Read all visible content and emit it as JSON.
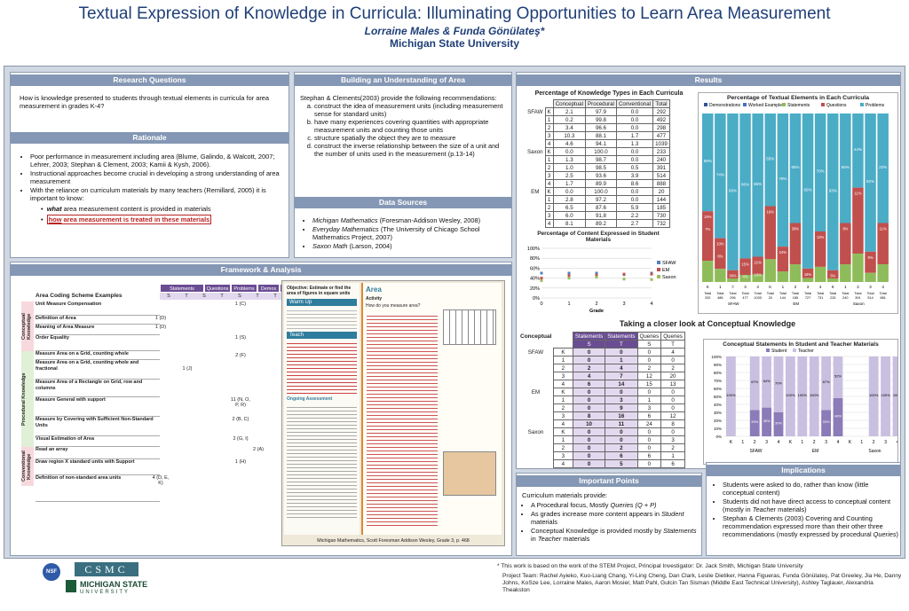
{
  "header": {
    "title": "Textual Expression of Knowledge in Curricula: Illuminating Opportunities to Learn Area Measurement",
    "authors": "Lorraine Males & Funda Gönülateş*",
    "affiliation": "Michigan State University"
  },
  "research": {
    "title": "Research Questions",
    "text": "How is knowledge presented to students through textual elements in curricula for area measurement in grades K-4?"
  },
  "rationale": {
    "title": "Rationale",
    "items": [
      "Poor performance in measurement including area (Blume, Galindo, & Walcott, 2007; Lehrer, 2003; Stephan & Clement, 2003; Kamii & Kysh, 2006).",
      "Instructional approaches become crucial in developing a strong understanding of area measurement",
      "With the reliance on curriculum materials by many teachers (Remillard, 2005) it is important to  know:"
    ],
    "sub1_a": "what",
    "sub1_b": " area measurement content is provided in materials",
    "sub2_a": "how",
    "sub2_b": " area measurement is treated in these materials"
  },
  "building": {
    "title": "Building an Understanding of Area",
    "intro": "Stephan & Clements(2003) provide the following recommendations:",
    "items": [
      "construct the idea of measurement units (including measurement sense for standard units)",
      "have many experiences covering quantities with appropriate measurement units and counting those units",
      "structure spatially the object they are to measure",
      "construct the inverse relationship between the size of a unit and the number of units used in the measurement (p.13-14)"
    ]
  },
  "sources": {
    "title": "Data Sources",
    "items": [
      {
        "name": "Michigan Mathematics",
        "rest": " (Foresman-Addison Wesley, 2008)"
      },
      {
        "name": "Everyday Mathematics",
        "rest": " (The University of Chicago School Mathematics Project, 2007)"
      },
      {
        "name": "Saxon Math",
        "rest": " (Larson, 2004)"
      }
    ]
  },
  "framework": {
    "title": "Framework & Analysis",
    "table_title": "Area Coding Scheme Examples",
    "cols": [
      "Statements",
      "Questions",
      "Problems",
      "Demos",
      "WEs"
    ],
    "sub": [
      "S",
      "T",
      "S",
      "T",
      "S",
      "T",
      "T",
      "S"
    ],
    "groups": [
      "Conceptual Knowledge",
      "Procedural Knowledge",
      "Conventional Knowledge"
    ],
    "rows": [
      "Unit Measure Compensation",
      "Definition of Area",
      "Meaning of Area Measure",
      "Order Equality",
      "Measure Area on a Grid, counting whole",
      "Measure Area on a Grid, counting whole and fractional",
      "Measure Area of a Rectangle on Grid, row and columns",
      "Measure General with support",
      "Measure by Covering with Sufficient Non-Standard Units",
      "Visual Estimation of Area",
      "Read an array",
      "Draw region X standard units with Support",
      "Definition of non-standard area units"
    ],
    "codes": [
      "1 (C)",
      "1 (D)",
      "1 (D)",
      "1 (S)",
      "2 (F)",
      "1 (L)",
      "1 (J)",
      "1 (M)",
      "11 (N, O, P, R)",
      "2 (B, C)",
      "2 (G, I)",
      "2 (A)",
      "1 (H)",
      "4 (D, E, K)"
    ],
    "caption": "Michigan Mathematics, Scott Foresman Addison Wesley, Grade 3, p. 468",
    "book1": "Objective: Estimate or find the area of figures in square units",
    "book2": "Warm Up",
    "book3": "Teach",
    "book4": "Ongoing Assessment",
    "book5": "Area",
    "book6": "Activity",
    "book7": "How do you measure area?"
  },
  "results": {
    "title": "Results",
    "t1_title": "Percentage of Knowledge Types in Each Curricula",
    "t1_head": [
      "Conceptual",
      "Procedural",
      "Conventional",
      "Total"
    ],
    "t1_rows": [
      [
        "SFAW",
        "K",
        "2.1",
        "97.9",
        "0.0",
        "292"
      ],
      [
        "",
        "1",
        "0.2",
        "99.8",
        "0.0",
        "492"
      ],
      [
        "",
        "2",
        "3.4",
        "96.6",
        "0.0",
        "298"
      ],
      [
        "",
        "3",
        "10.3",
        "88.1",
        "1.7",
        "477"
      ],
      [
        "",
        "4",
        "4.6",
        "94.1",
        "1.3",
        "1039"
      ],
      [
        "Saxon",
        "K",
        "0.0",
        "100.0",
        "0.0",
        "233"
      ],
      [
        "",
        "1",
        "1.3",
        "98.7",
        "0.0",
        "240"
      ],
      [
        "",
        "2",
        "1.0",
        "98.5",
        "0.5",
        "391"
      ],
      [
        "",
        "3",
        "2.5",
        "93.6",
        "3.9",
        "514"
      ],
      [
        "",
        "4",
        "1.7",
        "89.9",
        "8.6",
        "888"
      ],
      [
        "EM",
        "K",
        "0.0",
        "100.0",
        "0.0",
        "20"
      ],
      [
        "",
        "1",
        "2.8",
        "97.2",
        "0.0",
        "144"
      ],
      [
        "",
        "2",
        "6.5",
        "87.6",
        "5.9",
        "185"
      ],
      [
        "",
        "3",
        "6.0",
        "91.8",
        "2.2",
        "730"
      ],
      [
        "",
        "4",
        "8.1",
        "89.2",
        "2.7",
        "732"
      ]
    ],
    "sc_title": "Percentage of Content Expressed in Student Materials",
    "sc_legend": [
      "SFAW",
      "EM",
      "Saxon"
    ],
    "sc_y": [
      "100%",
      "80%",
      "60%",
      "40%",
      "20%",
      "0%"
    ],
    "sc_x": [
      "0",
      "1",
      "2",
      "3",
      "4"
    ],
    "sc_xlabel": "Grade",
    "st_title": "Percentage of Textual Elements in Each Curricula",
    "st_legend": [
      "Demonstrations",
      "Worked Examples",
      "Statements",
      "Questions",
      "Problems"
    ],
    "st_totals": [
      "Total 202",
      "Total 486",
      "Total 296",
      "Total 477",
      "Total 1033",
      "Total 20",
      "Total 144",
      "Total 185",
      "Total 727",
      "Total 731",
      "Total 233",
      "Total 240",
      "Total 391",
      "Total 514",
      "Total 881"
    ],
    "st_grades": [
      "K",
      "1",
      "2",
      "3",
      "4",
      "K",
      "1",
      "2",
      "3",
      "4",
      "K",
      "1",
      "2",
      "3",
      "4"
    ],
    "st_groups": [
      "SFAW",
      "EM",
      "Saxon"
    ],
    "st_labels": [
      "58%",
      "74%",
      "93%",
      "86%",
      "85%",
      "55%",
      "79%",
      "65%",
      "92%",
      "70%",
      "93%",
      "65%",
      "44%",
      "82%",
      "22%",
      "19%",
      "10%",
      "36%",
      "15%",
      "21%",
      "16%",
      "24%",
      "39%",
      "16%",
      "13%",
      "5%",
      "8%",
      "11%",
      "9%",
      "11%",
      "7%",
      "6%",
      "7%",
      "4%",
      "16%"
    ],
    "closer": "Taking a closer look at Conceptual Knowledge",
    "ck_head": [
      "Conceptual",
      "Statements",
      "Statements",
      "Queries",
      "Queries"
    ],
    "ck_sub": [
      "S",
      "T",
      "S",
      "T"
    ],
    "ck_rows": [
      [
        "SFAW",
        "K",
        "0",
        "0",
        "0",
        "4"
      ],
      [
        "",
        "1",
        "0",
        "1",
        "0",
        "0"
      ],
      [
        "",
        "2",
        "2",
        "4",
        "2",
        "2"
      ],
      [
        "",
        "3",
        "4",
        "7",
        "12",
        "20"
      ],
      [
        "",
        "4",
        "6",
        "14",
        "15",
        "13"
      ],
      [
        "EM",
        "K",
        "0",
        "0",
        "0",
        "0"
      ],
      [
        "",
        "1",
        "0",
        "3",
        "1",
        "0"
      ],
      [
        "",
        "2",
        "0",
        "9",
        "3",
        "0"
      ],
      [
        "",
        "3",
        "8",
        "16",
        "6",
        "12"
      ],
      [
        "",
        "4",
        "10",
        "11",
        "24",
        "8"
      ],
      [
        "Saxon",
        "K",
        "0",
        "0",
        "0",
        "0"
      ],
      [
        "",
        "1",
        "0",
        "0",
        "0",
        "3"
      ],
      [
        "",
        "2",
        "0",
        "2",
        "0",
        "2"
      ],
      [
        "",
        "3",
        "0",
        "6",
        "6",
        "1"
      ],
      [
        "",
        "4",
        "0",
        "5",
        "0",
        "6"
      ]
    ],
    "bc_title": "Conceptual Statements In Student and Teacher Materials",
    "bc_legend": [
      "Student",
      "Teacher"
    ],
    "bc_y": [
      "100%",
      "90%",
      "80%",
      "70%",
      "60%",
      "50%",
      "40%",
      "30%",
      "20%",
      "10%",
      "0%"
    ],
    "bc_x": [
      "K",
      "1",
      "2",
      "3",
      "4",
      "K",
      "1",
      "2",
      "3",
      "4",
      "K",
      "1",
      "2",
      "3",
      "4"
    ],
    "bc_groups": [
      "SFAW",
      "EM",
      "Saxon"
    ]
  },
  "chart_data": [
    {
      "type": "scatter",
      "title": "Percentage of Content Expressed in Student Materials",
      "xlabel": "Grade",
      "ylim": [
        0,
        100
      ],
      "x": [
        0,
        1,
        2,
        3,
        4
      ],
      "series": [
        {
          "name": "SFAW",
          "values": [
            50,
            50,
            50,
            47,
            50
          ]
        },
        {
          "name": "EM",
          "values": [
            40,
            45,
            46,
            48,
            48
          ]
        },
        {
          "name": "Saxon",
          "values": [
            35,
            40,
            42,
            38,
            37
          ]
        }
      ]
    },
    {
      "type": "bar",
      "title": "Conceptual Statements In Student and Teacher Materials",
      "categories": [
        "K",
        "1",
        "2",
        "3",
        "4",
        "K",
        "1",
        "2",
        "3",
        "4",
        "K",
        "1",
        "2",
        "3",
        "4"
      ],
      "series": [
        {
          "name": "Student",
          "values": [
            0,
            0,
            33,
            36,
            30,
            0,
            0,
            0,
            33,
            48,
            0,
            0,
            0,
            0,
            0
          ]
        },
        {
          "name": "Teacher",
          "values": [
            100,
            0,
            67,
            64,
            70,
            100,
            100,
            100,
            67,
            52,
            0,
            0,
            100,
            100,
            100
          ]
        }
      ],
      "ylim": [
        0,
        100
      ]
    }
  ],
  "points": {
    "title": "Important Points",
    "intro": "Curriculum materials provide:",
    "items": [
      {
        "a": "A Procedural focus, Mostly ",
        "i": "Queries (Q + P)",
        "b": ""
      },
      {
        "a": "As grades increase more content appears in ",
        "i": "Student",
        "b": " materials"
      },
      {
        "a": "Conceptual Knowledge is provided mostly by ",
        "i": "Statements",
        "b": " in ",
        "i2": "Teacher",
        "c": " materials"
      }
    ]
  },
  "implications": {
    "title": "Implications",
    "items": [
      {
        "a": "Students were asked to do, rather than know (little conceptual content)"
      },
      {
        "a": "Students did not have direct access to conceptual content (mostly in ",
        "i": "Teacher",
        "b": " materials)"
      },
      {
        "a": "Stephan & Clements (2003) Covering and Counting recommendation expressed more than their other three recommendations (mostly expressed by procedural ",
        "i": "Queries",
        "b": ")"
      }
    ]
  },
  "footer": {
    "logo": "CSMC",
    "msu": "MICHIGAN STATE",
    "msu2": "UNIVERSITY",
    "nsf": "NSF",
    "note": "* This work is based on the work of the STEM Project, Principal Investigator: Dr. Jack Smith, Michigan State University",
    "team": "Project Team:  Rachel Ayieko, Kuo-Liang Chang, Yi-Ling Cheng, Dan Clark, Leslie Dietiker, Hanna Figueras, Funda Gönülateş, Pat Greeley, Jia He, Danny Johns, KoSze Lee, Lorraine Males, Aaron Mosier, Matt Pahl, Gulcin Tan Sisman (Middle East Technical University), Ashley Taglauer, Alexandria Theakston"
  }
}
